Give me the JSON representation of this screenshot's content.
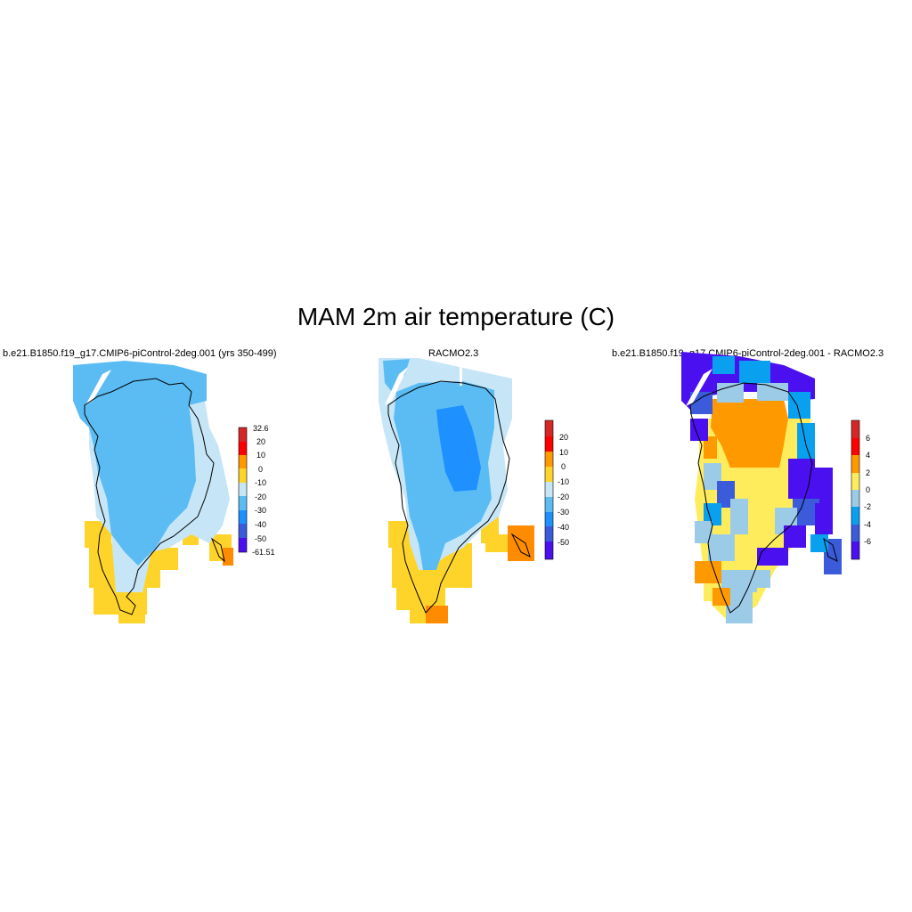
{
  "figure": {
    "title": "MAM 2m air temperature (C)"
  },
  "panels": [
    {
      "title": "b.e21.B1850.f19_g17.CMIP6-piControl-2deg.001 (yrs 350-499)",
      "colorbar": {
        "labels": [
          "32.6",
          "20",
          "10",
          "0",
          "-10",
          "-20",
          "-30",
          "-40",
          "-50",
          "-61.51"
        ],
        "colors": [
          "#d62728",
          "#ff0000",
          "#ff9900",
          "#ffd42a",
          "#c6e6f7",
          "#5bbcf4",
          "#1e90ff",
          "#3b5bdb",
          "#4b10f0"
        ]
      }
    },
    {
      "title": "RACMO2.3",
      "colorbar": {
        "labels": [
          "20",
          "10",
          "0",
          "-10",
          "-20",
          "-30",
          "-40",
          "-50"
        ],
        "colors": [
          "#d62728",
          "#ff0000",
          "#ff9900",
          "#ffd42a",
          "#c6e6f7",
          "#5bbcf4",
          "#1e90ff",
          "#3b5bdb",
          "#4b10f0"
        ]
      }
    },
    {
      "title": "b.e21.B1850.f19_g17.CMIP6-piControl-2deg.001 - RACMO2.3",
      "colorbar": {
        "labels": [
          "6",
          "4",
          "2",
          "0",
          "-2",
          "-4",
          "-6"
        ],
        "colors": [
          "#d62728",
          "#ff0000",
          "#ff9900",
          "#ffec5c",
          "#9ccbe8",
          "#0aa0f0",
          "#3b5bdb",
          "#4b10f0"
        ]
      }
    }
  ]
}
